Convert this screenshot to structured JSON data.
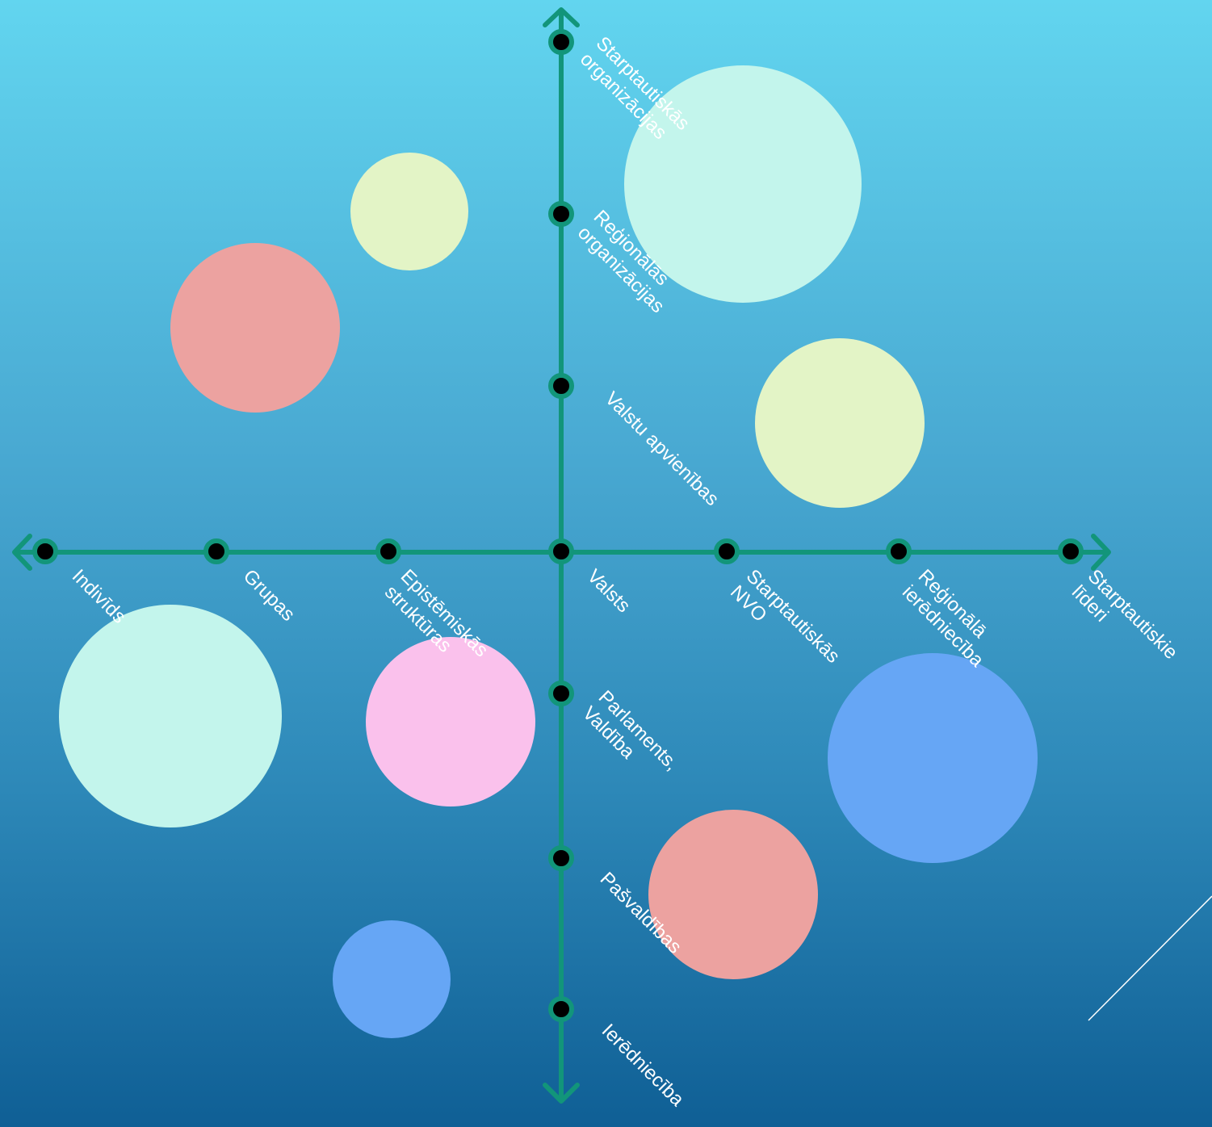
{
  "colors": {
    "axis": "#12957a",
    "dot_fill": "#000000",
    "label": "#ffffff",
    "mint": "#c3f5ec",
    "pale_yellow": "#e3f4c6",
    "salmon": "#eca2a0",
    "pink": "#fac1ec",
    "blue": "#66a6f5"
  },
  "horizontal_axis": {
    "labels": [
      [
        "Indivīds"
      ],
      [
        "Grupas"
      ],
      [
        "Epistēmiskās",
        "struktūras"
      ],
      [
        "Valsts"
      ],
      [
        "Starptautiskās",
        "NVO"
      ],
      [
        "Reģionālā",
        "ierēdniecība"
      ],
      [
        "Starptautiskie",
        "līderi"
      ]
    ]
  },
  "vertical_axis": {
    "labels": [
      [
        "Starptautiskās",
        "organizācijas"
      ],
      [
        "Reģionālās",
        "organizācijas"
      ],
      [
        "Valstu apvienības"
      ],
      [
        "Parlaments,",
        "Valdība"
      ],
      [
        "Pašvaldības"
      ],
      [
        "Ierēdniecība"
      ]
    ]
  },
  "bubbles": [
    {
      "name": "mint-bubble-top-right",
      "color": "mint"
    },
    {
      "name": "yellow-bubble-top-left",
      "color": "pale_yellow"
    },
    {
      "name": "salmon-bubble-top-left",
      "color": "salmon"
    },
    {
      "name": "yellow-bubble-right",
      "color": "pale_yellow"
    },
    {
      "name": "mint-bubble-bottom-left",
      "color": "mint"
    },
    {
      "name": "pink-bubble-bottom-left",
      "color": "pink"
    },
    {
      "name": "blue-bubble-bottom-right",
      "color": "blue"
    },
    {
      "name": "salmon-bubble-bottom-right",
      "color": "salmon"
    },
    {
      "name": "blue-bubble-bottom-left",
      "color": "blue"
    }
  ]
}
